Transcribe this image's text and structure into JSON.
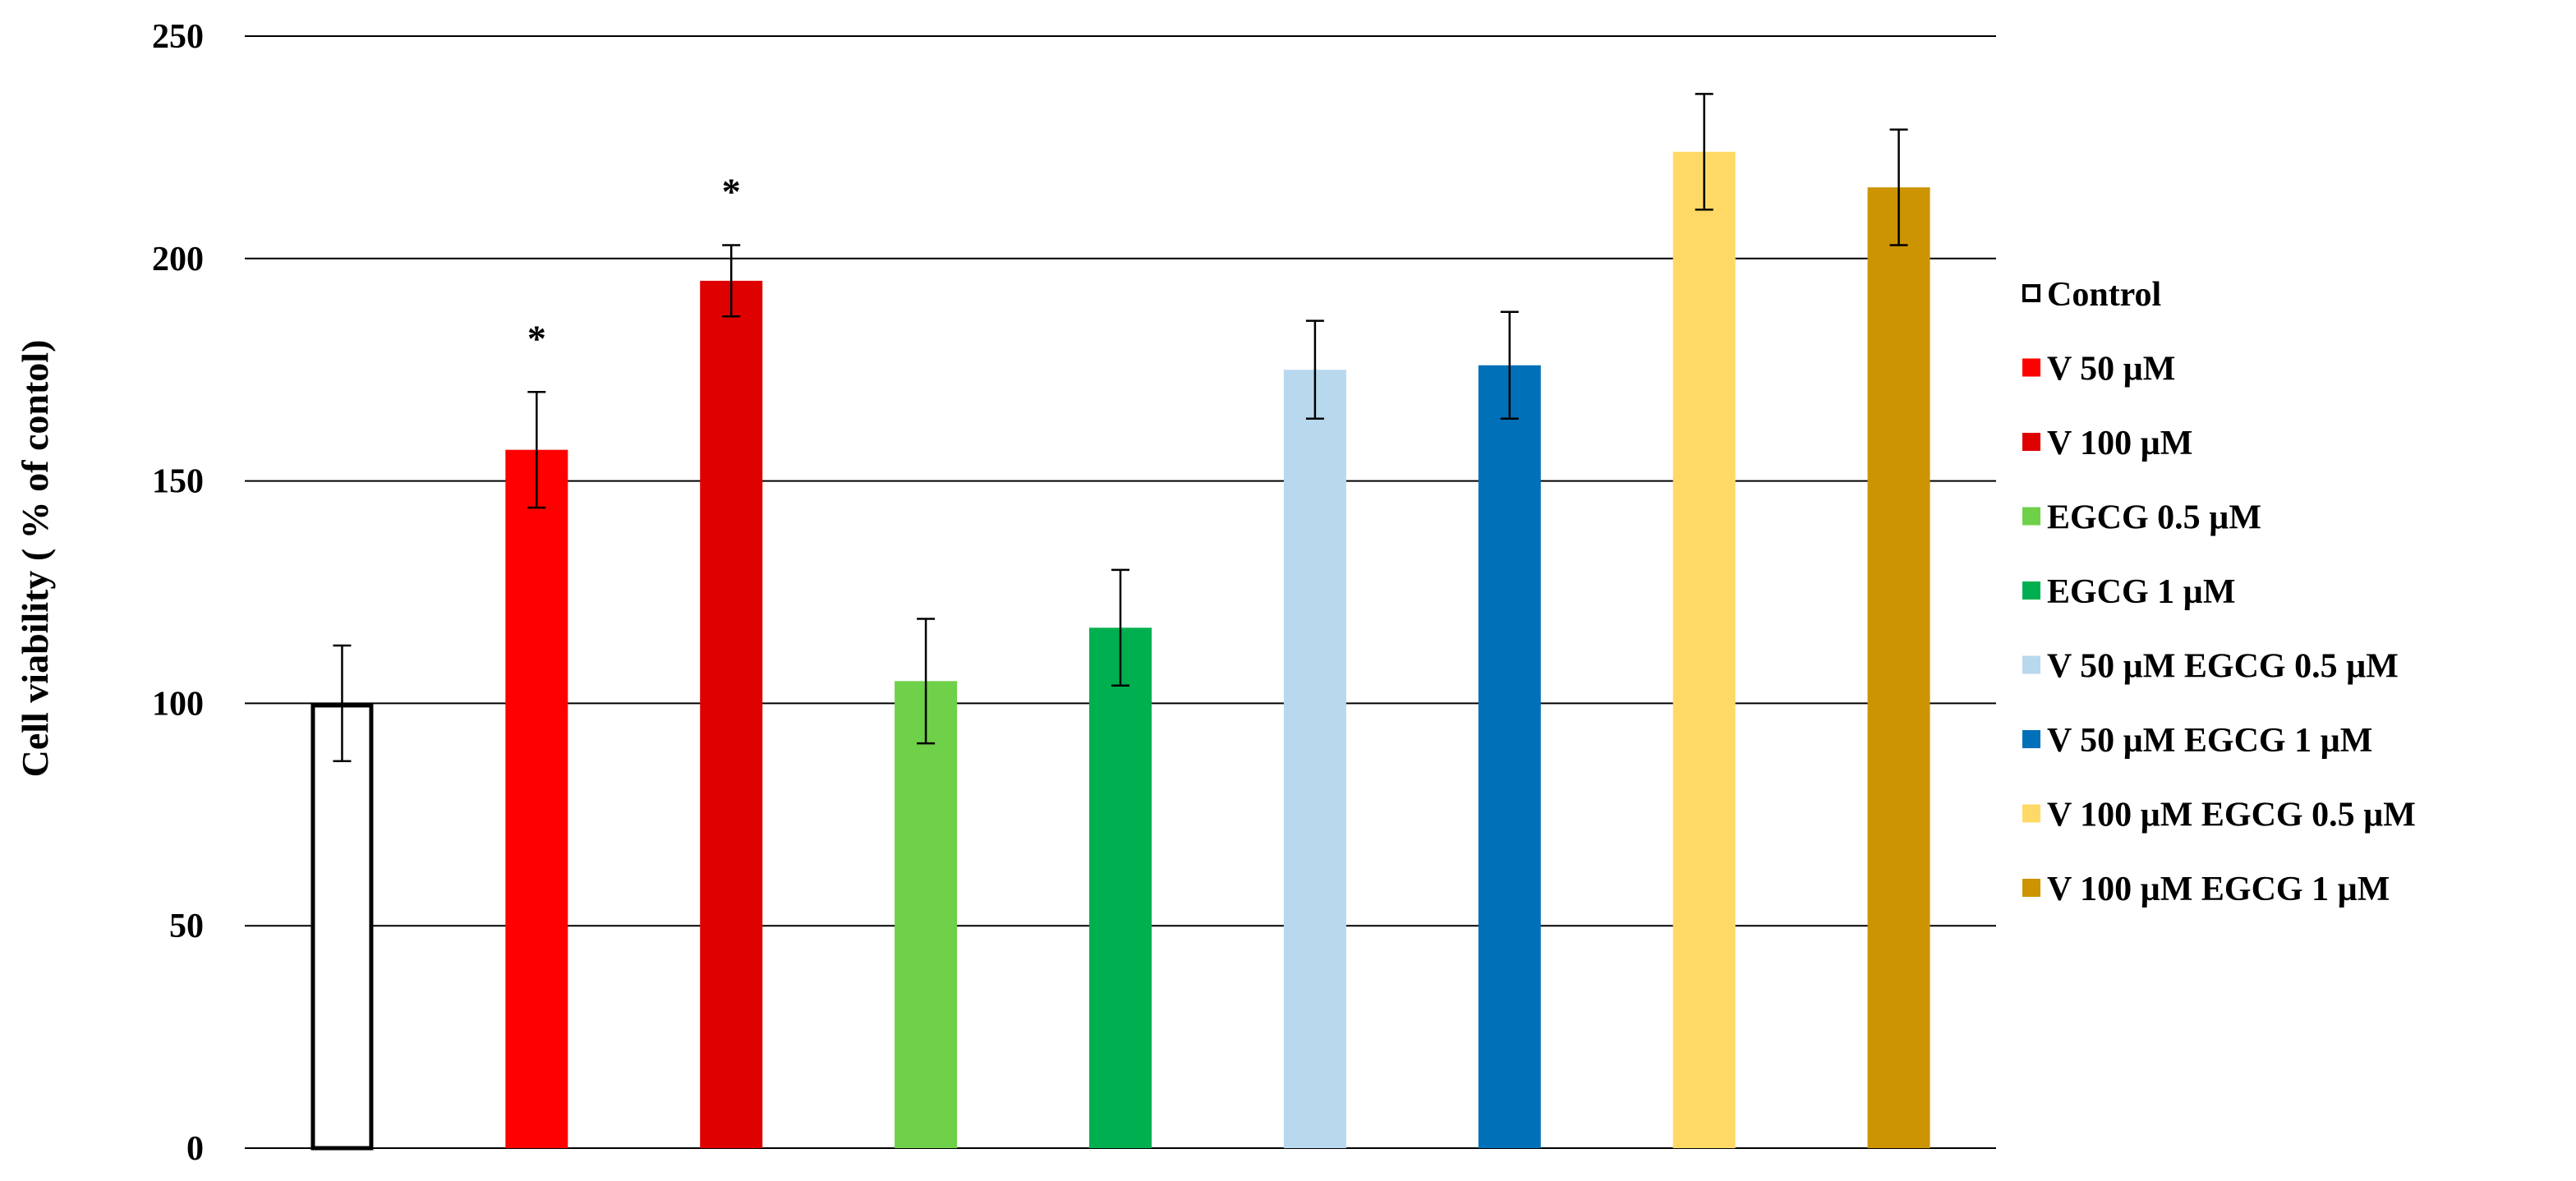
{
  "chart_data": {
    "type": "bar",
    "title": "",
    "xlabel": "",
    "ylabel": "Cell viability ( % of contol)",
    "ylim": [
      0,
      250
    ],
    "yticks": [
      0,
      50,
      100,
      150,
      200,
      250
    ],
    "grid": true,
    "legend_position": "right",
    "series": [
      {
        "name": "Control",
        "value": 100,
        "error": 13,
        "color": "#ffffff",
        "outline": "#000000",
        "marker": ""
      },
      {
        "name": "V 50 µM",
        "value": 157,
        "error": 13,
        "color": "#ff0000",
        "marker": "*"
      },
      {
        "name": "V 100 µM",
        "value": 195,
        "error": 8,
        "color": "#df0000",
        "marker": "*"
      },
      {
        "name": "EGCG 0.5 µM",
        "value": 105,
        "error": 14,
        "color": "#6fd04a",
        "marker": ""
      },
      {
        "name": "EGCG 1 µM",
        "value": 117,
        "error": 13,
        "color": "#00b050",
        "marker": ""
      },
      {
        "name": "V 50 µM EGCG 0.5 µM",
        "value": 175,
        "error": 11,
        "color": "#b8d8ee",
        "marker": ""
      },
      {
        "name": "V 50 µM EGCG 1 µM",
        "value": 176,
        "error": 12,
        "color": "#0070b8",
        "marker": ""
      },
      {
        "name": "V 100 µM EGCG 0.5 µM",
        "value": 224,
        "error": 13,
        "color": "#ffd966",
        "marker": ""
      },
      {
        "name": "V 100 µM EGCG 1 µM",
        "value": 216,
        "error": 13,
        "color": "#cc9400",
        "marker": ""
      }
    ]
  }
}
